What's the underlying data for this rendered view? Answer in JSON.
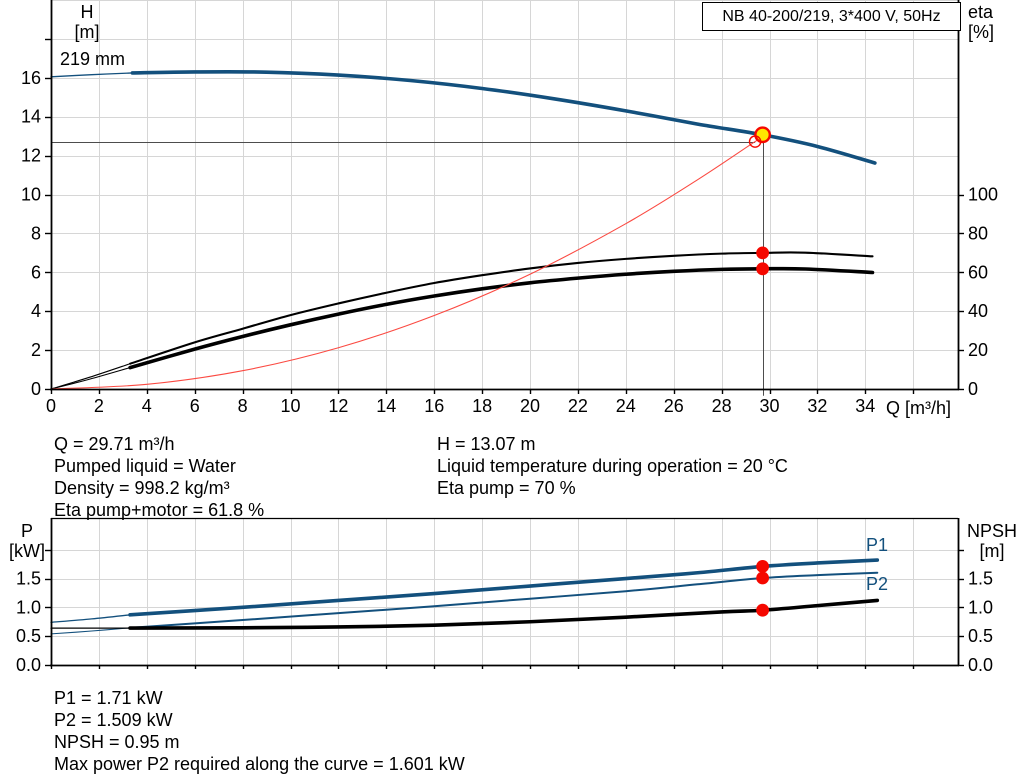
{
  "colors": {
    "curve_blue": "#13507d",
    "black": "#000000",
    "red": "#f50800",
    "system_red": "#fb4a42",
    "yellow": "#ffe600",
    "grid": "#d6d6d6",
    "duty_line": "#4d4d4d"
  },
  "operating_point_info": {
    "left": [
      "Q = 29.71 m³/h",
      "Pumped liquid = Water",
      "Density = 998.2 kg/m³",
      "Eta pump+motor = 61.8 %"
    ],
    "right": [
      "H = 13.07 m",
      "Liquid temperature during operation = 20 °C",
      "Eta pump = 70 %"
    ]
  },
  "power_info": [
    "P1 = 1.71 kW",
    "P2 = 1.509 kW",
    "NPSH = 0.95 m",
    "Max power P2 required along the curve = 1.601 kW"
  ],
  "chart_data": [
    {
      "name": "head-efficiency-chart",
      "type": "line",
      "title": "NB 40-200/219, 3*400 V, 50Hz",
      "xlabel": "Q [m³/h]",
      "ylabel_left": "H [m]",
      "ylabel_left_lines": [
        "H",
        "[m]"
      ],
      "ylabel_right": "eta [%]",
      "ylabel_right_lines": [
        "eta",
        "[%]"
      ],
      "xlim": [
        0,
        37.87
      ],
      "ylim_left": [
        0,
        20
      ],
      "ylim_right": [
        0,
        200
      ],
      "grid": true,
      "x_ticks": [
        [
          0,
          "0"
        ],
        [
          2,
          "2"
        ],
        [
          4,
          "4"
        ],
        [
          6,
          "6"
        ],
        [
          8,
          "8"
        ],
        [
          10,
          "10"
        ],
        [
          12,
          "12"
        ],
        [
          14,
          "14"
        ],
        [
          16,
          "16"
        ],
        [
          18,
          "18"
        ],
        [
          20,
          "20"
        ],
        [
          22,
          "22"
        ],
        [
          24,
          "24"
        ],
        [
          26,
          "26"
        ],
        [
          28,
          "28"
        ],
        [
          30,
          "30"
        ],
        [
          32,
          "32"
        ],
        [
          34,
          "34"
        ],
        [
          36,
          ""
        ]
      ],
      "y_ticks_left": [
        [
          0,
          "0"
        ],
        [
          2,
          "2"
        ],
        [
          4,
          "4"
        ],
        [
          6,
          "6"
        ],
        [
          8,
          "8"
        ],
        [
          10,
          "10"
        ],
        [
          12,
          "12"
        ],
        [
          14,
          "14"
        ],
        [
          16,
          "16"
        ],
        [
          18,
          ""
        ]
      ],
      "y_ticks_right": [
        [
          0,
          "0"
        ],
        [
          20,
          "20"
        ],
        [
          40,
          "40"
        ],
        [
          60,
          "60"
        ],
        [
          80,
          "80"
        ],
        [
          100,
          "100"
        ]
      ],
      "grid_x": [
        2,
        4,
        6,
        8,
        10,
        12,
        14,
        16,
        18,
        20,
        22,
        24,
        26,
        28,
        30,
        32,
        34,
        36
      ],
      "grid_y_left": [
        2,
        4,
        6,
        8,
        10,
        12,
        14,
        16,
        18,
        20
      ],
      "series": [
        {
          "name": "head-curve",
          "label": "219 mm",
          "axis": "left",
          "color": "#13507d",
          "width": 3.6,
          "width_thin": 1.3,
          "thin_points": [
            [
              0,
              16.05
            ],
            [
              1.7,
              16.16
            ],
            [
              3.4,
              16.25
            ]
          ],
          "points": [
            [
              3.4,
              16.25
            ],
            [
              6,
              16.3
            ],
            [
              9,
              16.29
            ],
            [
              12,
              16.14
            ],
            [
              15,
              15.86
            ],
            [
              18,
              15.45
            ],
            [
              21,
              14.92
            ],
            [
              24,
              14.3
            ],
            [
              27,
              13.62
            ],
            [
              29.71,
              13.07
            ],
            [
              32,
              12.47
            ],
            [
              34.4,
              11.62
            ]
          ]
        },
        {
          "name": "eta-pump-curve",
          "axis": "right",
          "color": "#000000",
          "width": 2.1,
          "width_thin": 1.1,
          "thin_points": [
            [
              0,
              0
            ],
            [
              1.6,
              6
            ],
            [
              3.3,
              13
            ]
          ],
          "points": [
            [
              3.3,
              13
            ],
            [
              6,
              24
            ],
            [
              8,
              31
            ],
            [
              10,
              38
            ],
            [
              12,
              44
            ],
            [
              14,
              49.5
            ],
            [
              16,
              54.5
            ],
            [
              18,
              58.5
            ],
            [
              20,
              62
            ],
            [
              22,
              64.8
            ],
            [
              24,
              66.9
            ],
            [
              26,
              68.5
            ],
            [
              28,
              69.6
            ],
            [
              29.71,
              70
            ],
            [
              31.5,
              70.1
            ],
            [
              34.3,
              68.2
            ]
          ]
        },
        {
          "name": "eta-pump-motor-curve",
          "axis": "right",
          "color": "#000000",
          "width": 3.6,
          "width_thin": 1.1,
          "thin_points": [
            [
              0,
              0
            ],
            [
              1.6,
              5
            ],
            [
              3.3,
              11
            ]
          ],
          "points": [
            [
              3.3,
              11
            ],
            [
              6,
              20.5
            ],
            [
              8,
              27
            ],
            [
              10,
              33
            ],
            [
              12,
              38.5
            ],
            [
              14,
              43.5
            ],
            [
              16,
              47.8
            ],
            [
              18,
              51.5
            ],
            [
              20,
              54.6
            ],
            [
              22,
              57
            ],
            [
              24,
              59
            ],
            [
              26,
              60.5
            ],
            [
              28,
              61.5
            ],
            [
              29.71,
              61.8
            ],
            [
              31.5,
              61.7
            ],
            [
              34.3,
              59.9
            ]
          ]
        },
        {
          "name": "system-curve",
          "axis": "left",
          "color": "#fb4a42",
          "width": 1.1,
          "points": [
            [
              0,
              0
            ],
            [
              4,
              0.24
            ],
            [
              8,
              0.94
            ],
            [
              12,
              2.12
            ],
            [
              16,
              3.78
            ],
            [
              20,
              5.9
            ],
            [
              24,
              8.5
            ],
            [
              27,
              10.76
            ],
            [
              29.4,
              12.72
            ],
            [
              29.95,
              13.12
            ]
          ]
        }
      ],
      "markers": [
        {
          "name": "duty-point",
          "style": "yellow-dot",
          "axis": "left",
          "x": 29.71,
          "y": 13.07
        },
        {
          "name": "requested-duty-point",
          "style": "red-open",
          "axis": "left",
          "x": 29.4,
          "y": 12.72
        },
        {
          "name": "eta-pump-duty-point",
          "style": "red-dot",
          "axis": "right",
          "x": 29.71,
          "y": 70
        },
        {
          "name": "eta-pump-motor-duty-point",
          "style": "red-dot",
          "axis": "right",
          "x": 29.71,
          "y": 61.8
        }
      ],
      "duty_lines": {
        "horizontal": {
          "y": 12.72,
          "x_from": 0,
          "x_to": 29.4
        },
        "vertical": {
          "x": 29.71,
          "y_from": 13.07,
          "y_to": -0.35
        }
      }
    },
    {
      "name": "power-npsh-chart",
      "type": "line",
      "title": "",
      "xlabel": "",
      "ylabel_left": "P [kW]",
      "ylabel_left_lines": [
        "P",
        "[kW]"
      ],
      "ylabel_right": "NPSH [m]",
      "ylabel_right_lines": [
        "NPSH",
        "[m]"
      ],
      "xlim": [
        0,
        37.87
      ],
      "ylim_left": [
        0,
        2.55
      ],
      "ylim_right": [
        0,
        2.55
      ],
      "grid": true,
      "x_ticks": [
        [
          0,
          ""
        ],
        [
          2,
          ""
        ],
        [
          4,
          ""
        ],
        [
          6,
          ""
        ],
        [
          8,
          ""
        ],
        [
          10,
          ""
        ],
        [
          12,
          ""
        ],
        [
          14,
          ""
        ],
        [
          16,
          ""
        ],
        [
          18,
          ""
        ],
        [
          20,
          ""
        ],
        [
          22,
          ""
        ],
        [
          24,
          ""
        ],
        [
          26,
          ""
        ],
        [
          28,
          ""
        ],
        [
          30,
          ""
        ],
        [
          32,
          ""
        ],
        [
          34,
          ""
        ],
        [
          36,
          ""
        ]
      ],
      "y_ticks_left": [
        [
          0,
          "0.0"
        ],
        [
          0.5,
          "0.5"
        ],
        [
          1,
          "1.0"
        ],
        [
          1.5,
          "1.5"
        ],
        [
          2,
          ""
        ]
      ],
      "y_ticks_right": [
        [
          0,
          "0.0"
        ],
        [
          0.5,
          "0.5"
        ],
        [
          1,
          "1.0"
        ],
        [
          1.5,
          "1.5"
        ],
        [
          2,
          ""
        ]
      ],
      "grid_x": [
        2,
        4,
        6,
        8,
        10,
        12,
        14,
        16,
        18,
        20,
        22,
        24,
        26,
        28,
        30,
        32,
        34,
        36
      ],
      "grid_y_left": [
        0.5,
        1,
        1.5,
        2
      ],
      "top_border": true,
      "series": [
        {
          "name": "p1-curve",
          "label": "P1",
          "axis": "left",
          "color": "#13507d",
          "width": 3.6,
          "width_thin": 1.3,
          "thin_points": [
            [
              0,
              0.74
            ],
            [
              1.7,
              0.8
            ],
            [
              3.3,
              0.87
            ]
          ],
          "points": [
            [
              3.3,
              0.87
            ],
            [
              8,
              1.0
            ],
            [
              12,
              1.12
            ],
            [
              16,
              1.24
            ],
            [
              20,
              1.37
            ],
            [
              24,
              1.5
            ],
            [
              27,
              1.6
            ],
            [
              29.71,
              1.71
            ],
            [
              32,
              1.77
            ],
            [
              34.5,
              1.82
            ]
          ]
        },
        {
          "name": "p2-curve",
          "label": "P2",
          "axis": "left",
          "color": "#13507d",
          "width": 2.0,
          "width_thin": 1.1,
          "thin_points": [
            [
              0,
              0.54
            ],
            [
              1.7,
              0.59
            ],
            [
              3.3,
              0.645
            ]
          ],
          "points": [
            [
              3.3,
              0.645
            ],
            [
              8,
              0.78
            ],
            [
              12,
              0.9
            ],
            [
              16,
              1.02
            ],
            [
              20,
              1.15
            ],
            [
              24,
              1.28
            ],
            [
              27,
              1.4
            ],
            [
              29.71,
              1.509
            ],
            [
              32,
              1.56
            ],
            [
              34.5,
              1.601
            ]
          ]
        },
        {
          "name": "npsh-curve",
          "axis": "right",
          "color": "#000000",
          "width": 3.6,
          "width_thin": 1.2,
          "thin_points": [
            [
              0,
              0.64
            ],
            [
              3.3,
              0.64
            ]
          ],
          "points": [
            [
              3.3,
              0.64
            ],
            [
              8,
              0.645
            ],
            [
              12,
              0.66
            ],
            [
              16,
              0.69
            ],
            [
              20,
              0.75
            ],
            [
              24,
              0.83
            ],
            [
              28,
              0.92
            ],
            [
              29.71,
              0.95
            ],
            [
              32,
              1.03
            ],
            [
              34.5,
              1.12
            ]
          ]
        }
      ],
      "markers": [
        {
          "name": "p1-duty-point",
          "style": "red-dot",
          "axis": "left",
          "x": 29.71,
          "y": 1.71
        },
        {
          "name": "p2-duty-point",
          "style": "red-dot",
          "axis": "left",
          "x": 29.71,
          "y": 1.509
        },
        {
          "name": "npsh-duty-point",
          "style": "red-dot",
          "axis": "right",
          "x": 29.71,
          "y": 0.95
        }
      ]
    }
  ]
}
